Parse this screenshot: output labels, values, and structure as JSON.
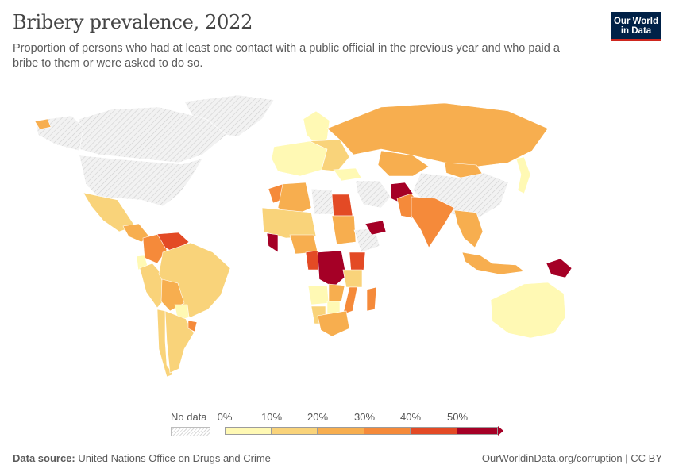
{
  "header": {
    "title": "Bribery prevalence, 2022",
    "subtitle": "Proportion of persons who had at least one contact with a public official in the previous year and who paid a bribe to them or were asked to do so.",
    "logo_line1": "Our World",
    "logo_line2": "in Data"
  },
  "legend": {
    "no_data_label": "No data",
    "ticks": [
      "0%",
      "10%",
      "20%",
      "30%",
      "40%",
      "50%"
    ],
    "colors": [
      "#fff9b4",
      "#f9d37a",
      "#f7ae4f",
      "#f58a3a",
      "#e34a25",
      "#a50026"
    ]
  },
  "footer": {
    "source_label": "Data source:",
    "source_text": "United Nations Office on Drugs and Crime",
    "link_text": "OurWorldinData.org/corruption | CC BY"
  },
  "colors": {
    "no_data_fill": "#eeeeee",
    "border": "#ffffff",
    "logo_bg": "#002147",
    "logo_accent": "#ce261e"
  },
  "map_data": {
    "type": "choropleth",
    "metric": "Bribery prevalence (%)",
    "year": 2022,
    "regions": [
      {
        "name": "Greenland",
        "band": "no-data"
      },
      {
        "name": "Canada",
        "band": "no-data"
      },
      {
        "name": "United States",
        "band": "no-data"
      },
      {
        "name": "Alaska",
        "band": "no-data"
      },
      {
        "name": "Mexico",
        "band": "10-20%"
      },
      {
        "name": "Central America",
        "band": "20-30%"
      },
      {
        "name": "Colombia",
        "band": "30-40%"
      },
      {
        "name": "Venezuela",
        "band": "40-50%"
      },
      {
        "name": "Ecuador",
        "band": "0-10%"
      },
      {
        "name": "Peru",
        "band": "10-20%"
      },
      {
        "name": "Brazil",
        "band": "10-20%"
      },
      {
        "name": "Bolivia",
        "band": "20-30%"
      },
      {
        "name": "Paraguay",
        "band": "0-10%"
      },
      {
        "name": "Chile",
        "band": "10-20%"
      },
      {
        "name": "Argentina",
        "band": "10-20%"
      },
      {
        "name": "Uruguay",
        "band": "30-40%"
      },
      {
        "name": "Iceland",
        "band": "20-30%"
      },
      {
        "name": "Scandinavia",
        "band": "0-10%"
      },
      {
        "name": "Western Europe",
        "band": "0-10%"
      },
      {
        "name": "Eastern Europe",
        "band": "10-20%"
      },
      {
        "name": "Russia",
        "band": "20-30%"
      },
      {
        "name": "Kazakhstan",
        "band": "20-30%"
      },
      {
        "name": "Mongolia",
        "band": "20-30%"
      },
      {
        "name": "China",
        "band": "no-data"
      },
      {
        "name": "Japan",
        "band": "0-10%"
      },
      {
        "name": "Turkey",
        "band": "0-10%"
      },
      {
        "name": "Iran",
        "band": "no-data"
      },
      {
        "name": "Afghanistan",
        "band": "50%+"
      },
      {
        "name": "Pakistan",
        "band": "30-40%"
      },
      {
        "name": "India",
        "band": "30-40%"
      },
      {
        "name": "Southeast Asia",
        "band": "20-30%"
      },
      {
        "name": "Indonesia",
        "band": "20-30%"
      },
      {
        "name": "Papua New Guinea",
        "band": "50%+"
      },
      {
        "name": "Australia",
        "band": "0-10%"
      },
      {
        "name": "Morocco",
        "band": "30-40%"
      },
      {
        "name": "Algeria",
        "band": "20-30%"
      },
      {
        "name": "Libya",
        "band": "no-data"
      },
      {
        "name": "Egypt",
        "band": "40-50%"
      },
      {
        "name": "Sahel",
        "band": "10-20%"
      },
      {
        "name": "Sudan",
        "band": "20-30%"
      },
      {
        "name": "Ethiopia",
        "band": "no-data"
      },
      {
        "name": "Yemen",
        "band": "50%+"
      },
      {
        "name": "Sierra Leone and Liberia",
        "band": "50%+"
      },
      {
        "name": "Nigeria",
        "band": "20-30%"
      },
      {
        "name": "Cameroon",
        "band": "40-50%"
      },
      {
        "name": "DR Congo",
        "band": "50%+"
      },
      {
        "name": "Kenya",
        "band": "40-50%"
      },
      {
        "name": "Tanzania",
        "band": "10-20%"
      },
      {
        "name": "Angola",
        "band": "0-10%"
      },
      {
        "name": "Zambia",
        "band": "20-30%"
      },
      {
        "name": "Mozambique",
        "band": "30-40%"
      },
      {
        "name": "Madagascar",
        "band": "30-40%"
      },
      {
        "name": "Namibia",
        "band": "10-20%"
      },
      {
        "name": "Botswana",
        "band": "0-10%"
      },
      {
        "name": "South Africa",
        "band": "20-30%"
      }
    ]
  }
}
